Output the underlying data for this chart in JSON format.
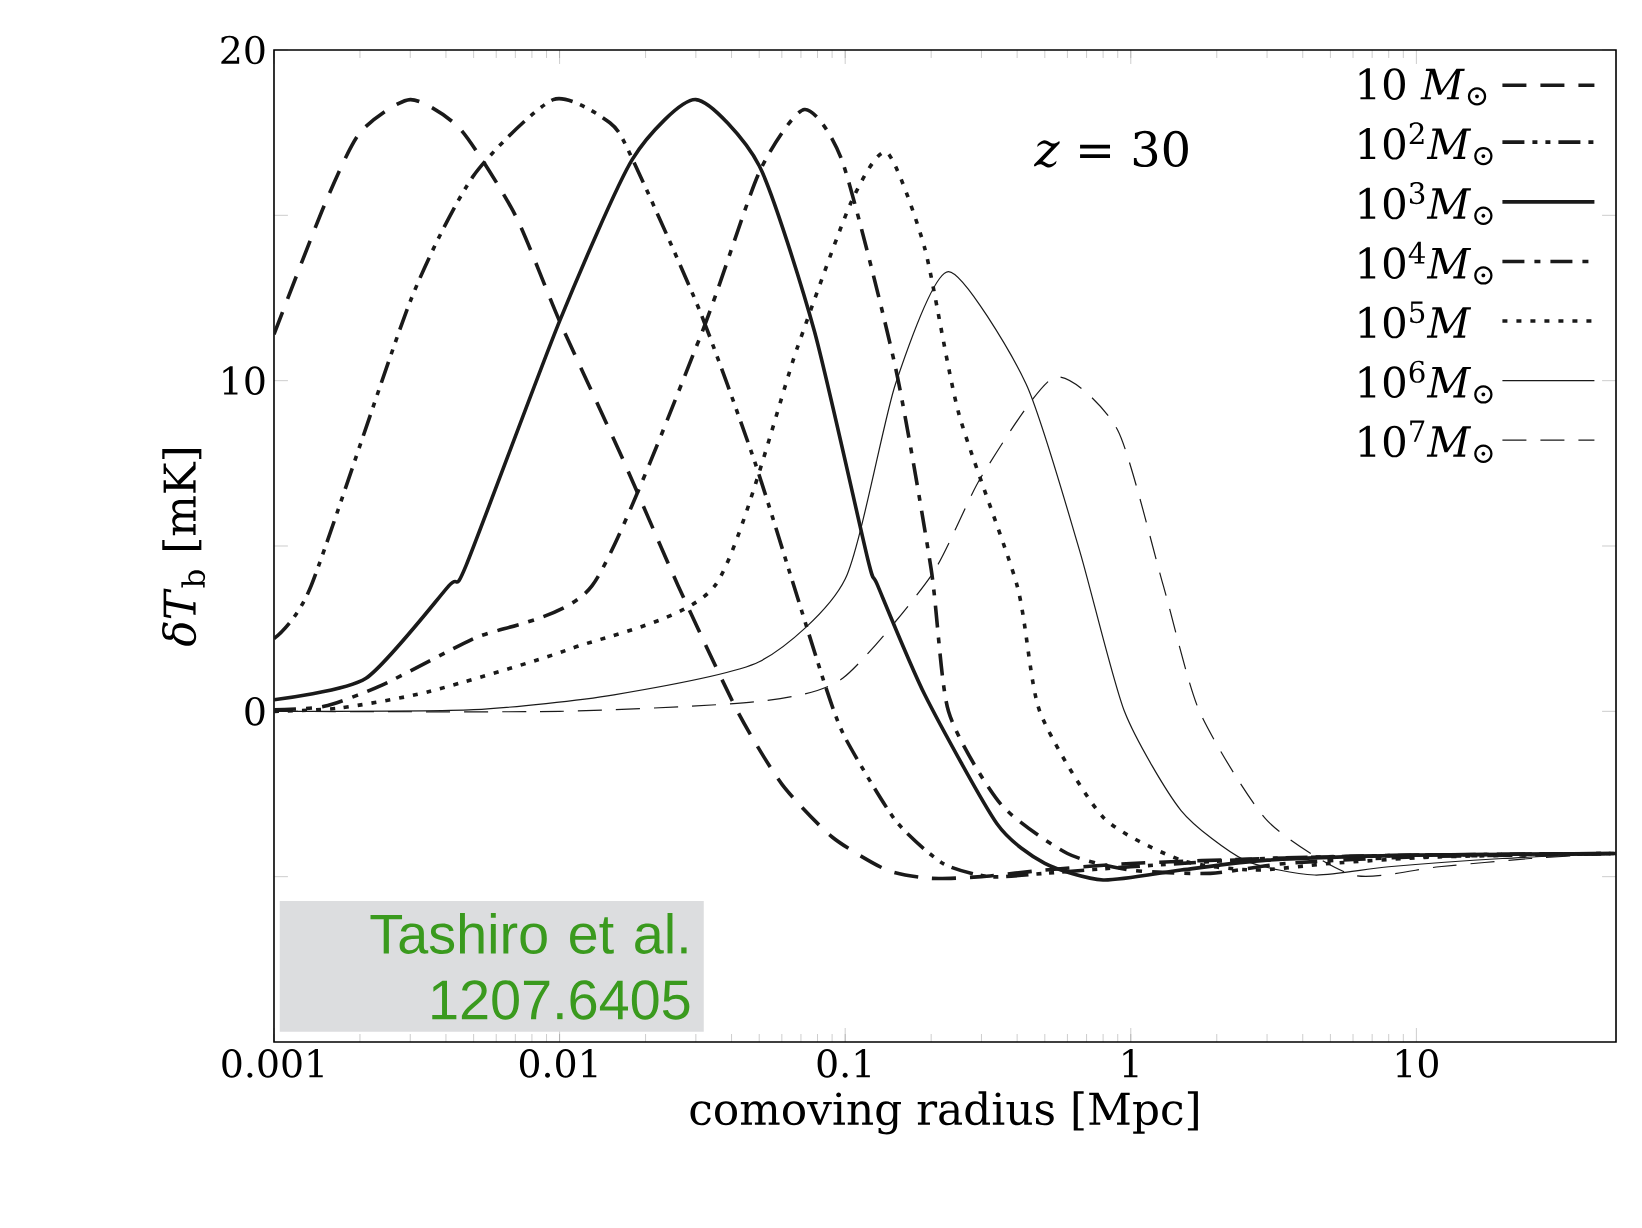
{
  "chart_data": {
    "type": "line",
    "xlabel": "comoving radius [Mpc]",
    "ylabel": "*δT*$_{b}$ [mK]",
    "log": "x",
    "xlim": [
      0.001,
      50
    ],
    "xticks": [
      0.001,
      0.01,
      0.1,
      1,
      10
    ],
    "ylim": [
      -10,
      20
    ],
    "yticks": [
      20,
      {
        "value": 15,
        "label": null
      },
      10,
      {
        "value": 5,
        "label": null
      },
      0,
      {
        "value": -5,
        "label": null
      }
    ],
    "legend": "top right",
    "annotations": [
      "*z* = 30",
      "Tashiro et al. 1207.6405"
    ],
    "series": [
      {
        "name": "10 *M*$_{⊙}$",
        "color": "#1a1a1a",
        "line_style": "dashed",
        "x": [
          0.001,
          0.0015,
          0.002,
          0.003,
          0.0045,
          0.007,
          0.01,
          0.0166,
          0.026,
          0.042,
          0.06,
          0.09,
          0.14,
          0.2,
          0.3,
          0.5,
          1,
          3,
          10,
          50
        ],
        "values": [
          11.4,
          15.3,
          17.5,
          18.5,
          17.6,
          15,
          11.8,
          7.65,
          3.8,
          0,
          -2.2,
          -3.8,
          -4.8,
          -5.05,
          -5.0,
          -4.8,
          -4.6,
          -4.45,
          -4.35,
          -4.3
        ]
      },
      {
        "name": "10$^{2}$*M*$_{⊙}$",
        "color": "#1a1a1a",
        "line_style": "dashdotdot",
        "x": [
          0.001,
          0.00135,
          0.003,
          0.005,
          0.0095,
          0.015,
          0.018,
          0.031,
          0.048,
          0.065,
          0.085,
          0.1,
          0.15,
          0.22,
          0.32,
          0.5,
          1,
          3,
          10,
          50
        ],
        "values": [
          2.2,
          3.8,
          12.4,
          16.2,
          18.5,
          17.8,
          16.7,
          12.1,
          7.6,
          4,
          0.8,
          -0.8,
          -3.3,
          -4.6,
          -5.0,
          -4.9,
          -4.7,
          -4.45,
          -4.35,
          -4.3
        ]
      },
      {
        "name": "10$^{3}$*M*$_{⊙}$",
        "color": "#1a1a1a",
        "line_style": "solid",
        "x": [
          0.001,
          0.0021,
          0.0041,
          0.0047,
          0.01,
          0.018,
          0.03,
          0.05,
          0.078,
          0.12,
          0.13,
          0.19,
          0.34,
          0.5,
          0.8,
          1.5,
          3,
          10,
          50
        ],
        "values": [
          0.35,
          1.0,
          3.8,
          4.4,
          11.8,
          16.7,
          18.5,
          16.5,
          11.5,
          4.6,
          3.8,
          0.5,
          -3.4,
          -4.6,
          -5.1,
          -4.8,
          -4.5,
          -4.35,
          -4.3
        ]
      },
      {
        "name": "10$^{4}$*M*$_{⊙}$",
        "color": "#1a1a1a",
        "line_style": "dashdot",
        "x": [
          0.001,
          0.0015,
          0.0024,
          0.005,
          0.013,
          0.031,
          0.05,
          0.072,
          0.098,
          0.15,
          0.2,
          0.23,
          0.35,
          0.6,
          1.0,
          1.9,
          3.5,
          10,
          50
        ],
        "values": [
          0.05,
          0.15,
          0.8,
          2.2,
          3.8,
          11.3,
          16.3,
          18.2,
          16.6,
          10.4,
          4.3,
          0,
          -2.8,
          -4.3,
          -4.8,
          -4.9,
          -4.6,
          -4.4,
          -4.3
        ]
      },
      {
        "name": "10$^{5}$*M*",
        "color": "#1a1a1a",
        "line_style": "dotted",
        "x": [
          0.001,
          0.0017,
          0.0035,
          0.011,
          0.035,
          0.068,
          0.105,
          0.14,
          0.19,
          0.25,
          0.4,
          0.48,
          0.8,
          1.5,
          2.7,
          5,
          12,
          50
        ],
        "values": [
          0.0,
          0.1,
          0.6,
          1.9,
          3.8,
          11,
          15.4,
          16.9,
          14,
          9,
          3.8,
          0,
          -3.2,
          -4.5,
          -4.8,
          -4.6,
          -4.4,
          -4.3
        ]
      },
      {
        "name": "10$^{6}$*M*$_{⊙}$",
        "color": "#1a1a1a",
        "line_style": "solid",
        "x": [
          0.001,
          0.005,
          0.0155,
          0.05,
          0.1,
          0.15,
          0.23,
          0.43,
          0.66,
          0.95,
          1.5,
          2.5,
          4.4,
          8,
          20,
          50
        ],
        "values": [
          0,
          0.05,
          0.5,
          1.5,
          4.0,
          9.9,
          13.3,
          9.9,
          4.9,
          0,
          -3,
          -4.5,
          -4.95,
          -4.7,
          -4.45,
          -4.3
        ]
      },
      {
        "name": "10$^{7}$*M*$_{⊙}$",
        "color": "#1a1a1a",
        "line_style": "dashed",
        "x": [
          0.001,
          0.01,
          0.05,
          0.098,
          0.2,
          0.3,
          0.54,
          0.9,
          1.3,
          1.74,
          3,
          6,
          12,
          25,
          50
        ],
        "values": [
          0,
          0,
          0.3,
          1.0,
          4.1,
          7.1,
          10.1,
          8.5,
          3.8,
          0,
          -3.3,
          -4.95,
          -4.7,
          -4.45,
          -4.3
        ]
      }
    ]
  }
}
